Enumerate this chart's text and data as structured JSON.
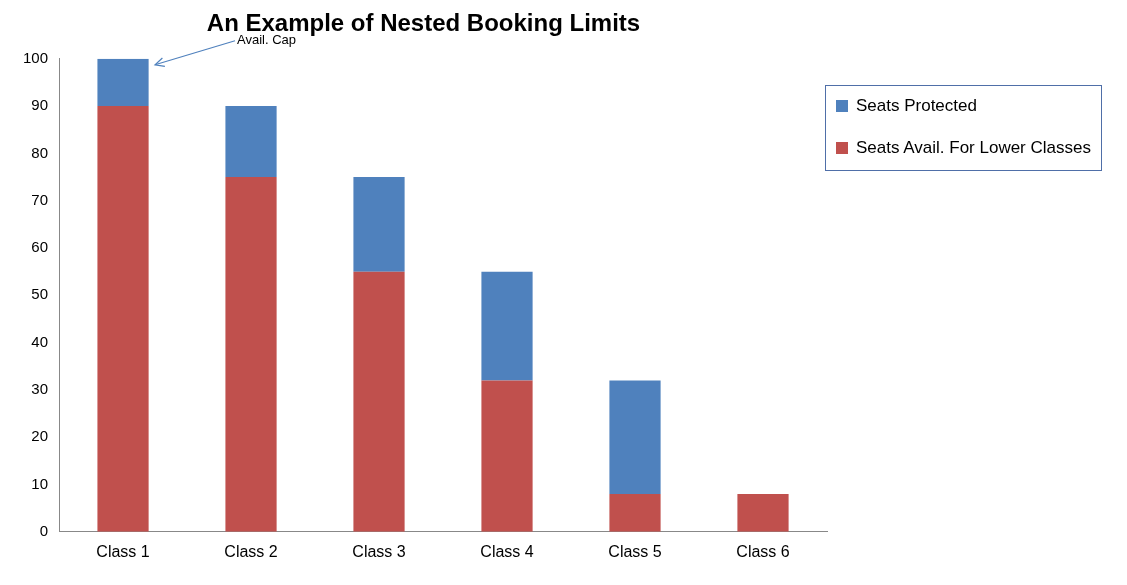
{
  "chart_data": {
    "type": "bar",
    "title": "An Example of Nested Booking Limits",
    "stacked": true,
    "categories": [
      "Class 1",
      "Class 2",
      "Class 3",
      "Class 4",
      "Class 5",
      "Class 6"
    ],
    "series": [
      {
        "name": "Seats Avail. For Lower Classes",
        "color": "#c0504d",
        "values": [
          90,
          75,
          55,
          32,
          8,
          8
        ]
      },
      {
        "name": "Seats Protected",
        "color": "#4f81bd",
        "values": [
          10,
          15,
          20,
          23,
          24,
          0
        ]
      }
    ],
    "ylim": [
      0,
      100
    ],
    "yticks": [
      0,
      10,
      20,
      30,
      40,
      50,
      60,
      70,
      80,
      90,
      100
    ],
    "grid": false,
    "legend": "right",
    "annotations": [
      "Avail. Cap"
    ]
  }
}
